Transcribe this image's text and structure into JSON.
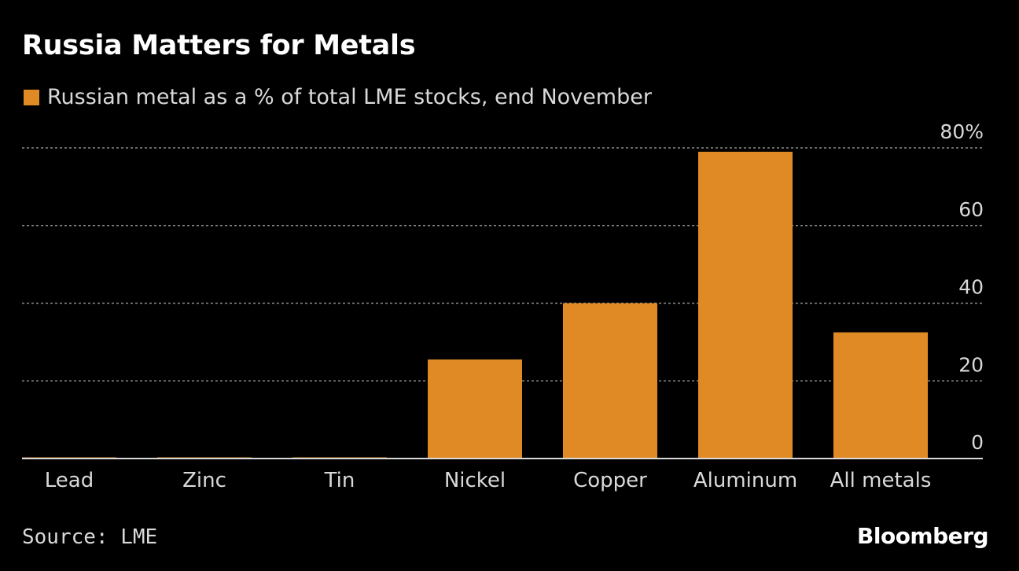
{
  "chart_data": {
    "type": "bar",
    "title": "Russia Matters for Metals",
    "legend": [
      {
        "label": "Russian metal as a % of total LME stocks, end November",
        "color": "#e08a25"
      }
    ],
    "categories": [
      "Lead",
      "Zinc",
      "Tin",
      "Nickel",
      "Copper",
      "Aluminum",
      "All metals"
    ],
    "series": [
      {
        "name": "Russian metal as a % of total LME stocks, end November",
        "values": [
          0.3,
          0.3,
          0.3,
          25.5,
          40,
          79,
          32.5
        ]
      }
    ],
    "ylim": [
      0,
      80
    ],
    "yticks": [
      0,
      20,
      40,
      60,
      80
    ],
    "ytick_labels": [
      "0",
      "20",
      "40",
      "60",
      "80%"
    ],
    "xlabel": "",
    "ylabel": "",
    "yaxis_position": "right",
    "grid": true
  },
  "source": "Source: LME",
  "brand": "Bloomberg",
  "colors": {
    "background": "#000000",
    "bar": "#e08a25",
    "grid": "#8c8c8c",
    "axis": "#d9d9d9",
    "text": "#ffffff"
  }
}
